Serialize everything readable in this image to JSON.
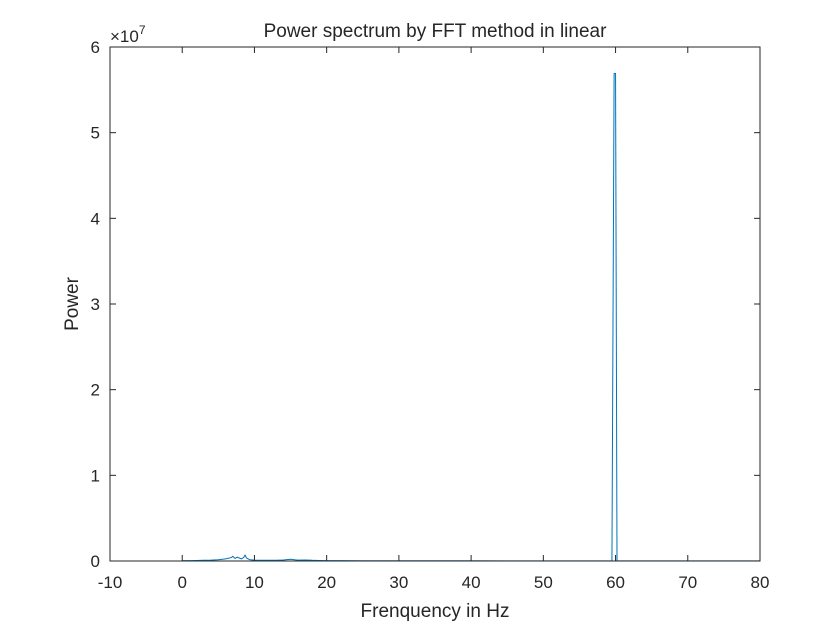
{
  "chart_data": {
    "type": "line",
    "title": "Power spectrum by FFT method in linear",
    "xlabel": "Frenquency in Hz",
    "ylabel": "Power",
    "xlim": [
      -10,
      80
    ],
    "ylim": [
      0,
      60000000
    ],
    "x_ticks": [
      -10,
      0,
      10,
      20,
      30,
      40,
      50,
      60,
      70,
      80
    ],
    "x_tick_labels": [
      "-10",
      "0",
      "10",
      "20",
      "30",
      "40",
      "50",
      "60",
      "70",
      "80"
    ],
    "y_ticks": [
      0,
      10000000,
      20000000,
      30000000,
      40000000,
      50000000,
      60000000
    ],
    "y_tick_labels": [
      "0",
      "1",
      "2",
      "3",
      "4",
      "5",
      "6"
    ],
    "y_multiplier": {
      "base": "×10",
      "exponent": "7"
    },
    "grid": false,
    "legend": "none",
    "series": [
      {
        "color": "#0072BD",
        "x": [
          0,
          1,
          2,
          3,
          4,
          5,
          6,
          6.8,
          7.0,
          7.3,
          7.6,
          7.9,
          8.2,
          8.5,
          8.7,
          8.9,
          9.1,
          9.4,
          10,
          11,
          12,
          13,
          14,
          15,
          15.5,
          16,
          17,
          18,
          19,
          20,
          22,
          25,
          28,
          30,
          35,
          40,
          45,
          50,
          55,
          58,
          59.5,
          59.8,
          60.0,
          60.2,
          60.5,
          61,
          62,
          65,
          70,
          75,
          80
        ],
        "y": [
          40000,
          50000,
          60000,
          80000,
          100000,
          150000,
          250000,
          400000,
          550000,
          300000,
          450000,
          350000,
          250000,
          400000,
          700000,
          350000,
          250000,
          150000,
          100000,
          90000,
          80000,
          90000,
          120000,
          200000,
          150000,
          100000,
          120000,
          80000,
          60000,
          50000,
          40000,
          35000,
          30000,
          30000,
          25000,
          25000,
          20000,
          20000,
          20000,
          20000,
          30000,
          56900000,
          56900000,
          30000,
          20000,
          20000,
          20000,
          20000,
          20000,
          20000,
          20000
        ]
      }
    ]
  }
}
